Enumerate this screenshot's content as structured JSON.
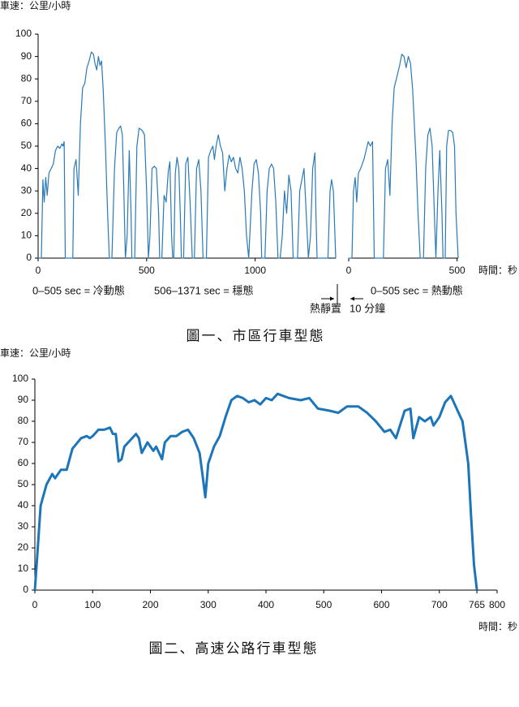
{
  "chart_data": [
    {
      "type": "line",
      "title": "圖一、市區行車型態",
      "ylabel": "車速：公里/小時",
      "xlabel": "時間：秒",
      "ylim": [
        0,
        100
      ],
      "yticks": [
        0,
        10,
        20,
        30,
        40,
        50,
        60,
        70,
        80,
        90,
        100
      ],
      "grid": false,
      "color": "#2a7ab8",
      "panels": [
        {
          "xlim": [
            0,
            1371
          ],
          "xticks": [
            0,
            500,
            1000
          ],
          "x": [
            0,
            15,
            22,
            28,
            35,
            42,
            50,
            60,
            70,
            80,
            90,
            100,
            110,
            115,
            120,
            125,
            160,
            165,
            175,
            185,
            195,
            205,
            215,
            225,
            235,
            245,
            255,
            262,
            270,
            278,
            285,
            292,
            300,
            310,
            320,
            328,
            340,
            352,
            362,
            372,
            380,
            388,
            395,
            402,
            410,
            420,
            428,
            432,
            445,
            455,
            465,
            480,
            490,
            500,
            508,
            515,
            525,
            535,
            545,
            555,
            560,
            570,
            580,
            590,
            600,
            607,
            615,
            620,
            625,
            632,
            640,
            648,
            655,
            660,
            670,
            680,
            690,
            700,
            710,
            720,
            730,
            740,
            750,
            760,
            775,
            785,
            795,
            805,
            812,
            820,
            830,
            840,
            850,
            860,
            870,
            880,
            890,
            900,
            910,
            920,
            930,
            940,
            950,
            960,
            970,
            985,
            995,
            1005,
            1015,
            1025,
            1030,
            1045,
            1055,
            1065,
            1075,
            1085,
            1095,
            1105,
            1115,
            1125,
            1135,
            1145,
            1155,
            1165,
            1175,
            1195,
            1205,
            1215,
            1225,
            1235,
            1245,
            1255,
            1265,
            1275,
            1280,
            1285,
            1335,
            1345,
            1352,
            1360,
            1371
          ],
          "values": [
            0,
            0,
            35,
            25,
            36,
            28,
            38,
            40,
            42,
            48,
            50,
            49,
            51,
            50,
            52,
            0,
            0,
            40,
            44,
            28,
            60,
            76,
            78,
            85,
            88,
            92,
            91,
            87,
            84,
            90,
            86,
            88,
            75,
            50,
            20,
            0,
            0,
            40,
            56,
            58,
            59,
            55,
            30,
            0,
            10,
            48,
            20,
            0,
            0,
            50,
            58,
            57,
            55,
            30,
            0,
            10,
            40,
            41,
            40,
            20,
            0,
            0,
            28,
            25,
            39,
            43,
            10,
            0,
            0,
            38,
            45,
            40,
            20,
            0,
            0,
            42,
            45,
            25,
            0,
            0,
            40,
            44,
            30,
            0,
            0,
            45,
            48,
            50,
            44,
            50,
            55,
            50,
            47,
            30,
            40,
            46,
            43,
            45,
            40,
            38,
            45,
            40,
            30,
            10,
            0,
            30,
            42,
            44,
            38,
            20,
            0,
            0,
            30,
            40,
            42,
            40,
            25,
            0,
            0,
            10,
            30,
            20,
            37,
            30,
            0,
            0,
            30,
            35,
            40,
            20,
            0,
            10,
            40,
            47,
            20,
            0,
            0,
            30,
            35,
            30,
            0
          ]
        },
        {
          "xlim": [
            0,
            505
          ],
          "xticks": [
            0,
            500
          ],
          "x": [
            0,
            15,
            22,
            30,
            37,
            45,
            55,
            70,
            80,
            90,
            100,
            110,
            118,
            160,
            170,
            180,
            190,
            200,
            210,
            220,
            235,
            245,
            255,
            265,
            275,
            285,
            295,
            310,
            320,
            330,
            345,
            355,
            365,
            375,
            385,
            395,
            402,
            412,
            420,
            430,
            435,
            445,
            452,
            460,
            470,
            480,
            488,
            495,
            505
          ],
          "values": [
            0,
            0,
            30,
            36,
            25,
            38,
            40,
            44,
            48,
            52,
            50,
            52,
            0,
            0,
            40,
            44,
            28,
            60,
            76,
            80,
            86,
            91,
            90,
            85,
            90,
            87,
            75,
            45,
            20,
            0,
            0,
            40,
            55,
            58,
            50,
            20,
            0,
            30,
            48,
            20,
            0,
            0,
            50,
            57,
            57,
            56,
            50,
            20,
            0
          ]
        }
      ],
      "annotations": [
        "0–505 sec = 冷動態",
        "506–1371 sec = 穩態",
        "熱靜置",
        "10 分鐘",
        "0–505 sec = 熱動態"
      ]
    },
    {
      "type": "line",
      "title": "圖二、高速公路行車型態",
      "ylabel": "車速：公里/小時",
      "xlabel": "時間：秒",
      "ylim": [
        0,
        100
      ],
      "yticks": [
        0,
        10,
        20,
        30,
        40,
        50,
        60,
        70,
        80,
        90,
        100
      ],
      "grid": false,
      "color": "#1c75b8",
      "panels": [
        {
          "xlim": [
            0,
            800
          ],
          "xticks": [
            0,
            100,
            200,
            300,
            400,
            500,
            600,
            700,
            765,
            800
          ],
          "x": [
            0,
            5,
            10,
            20,
            30,
            35,
            45,
            55,
            65,
            80,
            90,
            95,
            100,
            110,
            120,
            130,
            135,
            140,
            145,
            150,
            155,
            165,
            175,
            180,
            185,
            195,
            205,
            210,
            220,
            225,
            235,
            245,
            255,
            265,
            275,
            285,
            290,
            295,
            300,
            310,
            320,
            330,
            340,
            350,
            360,
            370,
            380,
            390,
            400,
            410,
            420,
            430,
            440,
            460,
            475,
            490,
            510,
            525,
            540,
            560,
            575,
            590,
            605,
            615,
            625,
            640,
            650,
            655,
            665,
            675,
            685,
            690,
            700,
            710,
            720,
            730,
            740,
            750,
            755,
            760,
            765
          ],
          "values": [
            0,
            20,
            40,
            50,
            55,
            53,
            57,
            57,
            67,
            72,
            73,
            72,
            73,
            76,
            76,
            77,
            74,
            74,
            61,
            62,
            68,
            71,
            74,
            72,
            65,
            70,
            66,
            68,
            62,
            70,
            73,
            73,
            75,
            76,
            72,
            65,
            55,
            44,
            60,
            68,
            73,
            82,
            90,
            92,
            91,
            89,
            90,
            88,
            91,
            90,
            93,
            92,
            91,
            90,
            91,
            86,
            85,
            84,
            87,
            87,
            84,
            80,
            75,
            76,
            72,
            85,
            86,
            72,
            82,
            80,
            82,
            78,
            82,
            89,
            92,
            86,
            80,
            60,
            35,
            12,
            0
          ]
        }
      ]
    }
  ]
}
